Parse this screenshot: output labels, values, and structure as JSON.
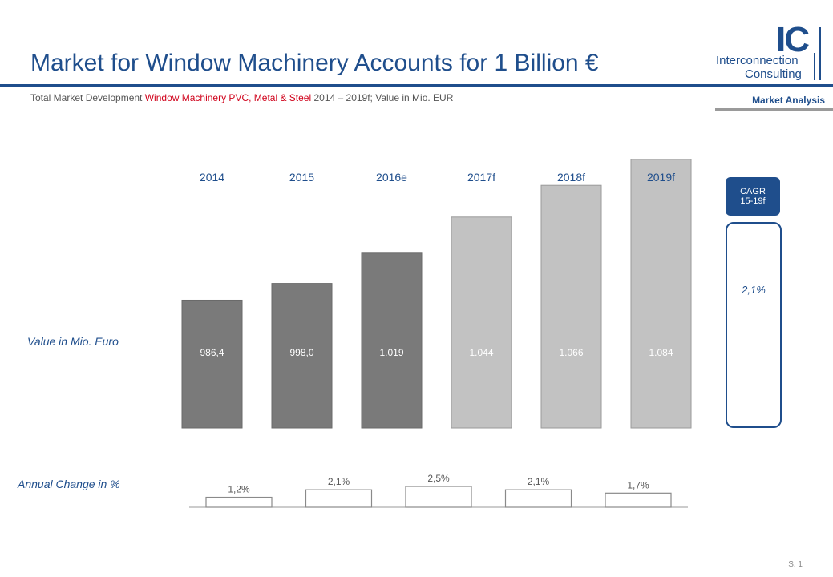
{
  "header": {
    "title": "Market for Window Machinery Accounts for 1 Billion €",
    "subtitle_pre": "Total Market Development ",
    "subtitle_highlight": "Window Machinery PVC, Metal & Steel",
    "subtitle_post": " 2014 – 2019f; Value in Mio. EUR",
    "section_label": "Market Analysis"
  },
  "logo": {
    "mark": "IC",
    "line1": "Interconnection",
    "line2": "Consulting"
  },
  "labels": {
    "value_row": "Value in Mio. Euro",
    "change_row": "Annual Change in %"
  },
  "cagr": {
    "header_line1": "CAGR",
    "header_line2": "15-19f",
    "value": "2,1%"
  },
  "footer": {
    "page": "S. 1"
  },
  "colors": {
    "brand_blue": "#1f4e8c",
    "highlight_red": "#d0021b",
    "actual_bar": "#7a7a7a",
    "forecast_bar": "#c2c2c2"
  },
  "chart_data": [
    {
      "type": "bar",
      "categories": [
        "2014",
        "2015",
        "2016e",
        "2017f",
        "2018f",
        "2019f"
      ],
      "values": [
        986.4,
        998.0,
        1019,
        1044,
        1066,
        1084
      ],
      "value_labels": [
        "986,4",
        "998,0",
        "1.019",
        "1.044",
        "1.066",
        "1.084"
      ],
      "forecast": [
        false,
        false,
        false,
        true,
        true,
        true
      ]
    },
    {
      "type": "bar",
      "values": [
        1.2,
        2.1,
        2.5,
        2.1,
        1.7
      ],
      "value_labels": [
        "1,2%",
        "2,1%",
        "2,5%",
        "2,1%",
        "1,7%"
      ]
    }
  ]
}
